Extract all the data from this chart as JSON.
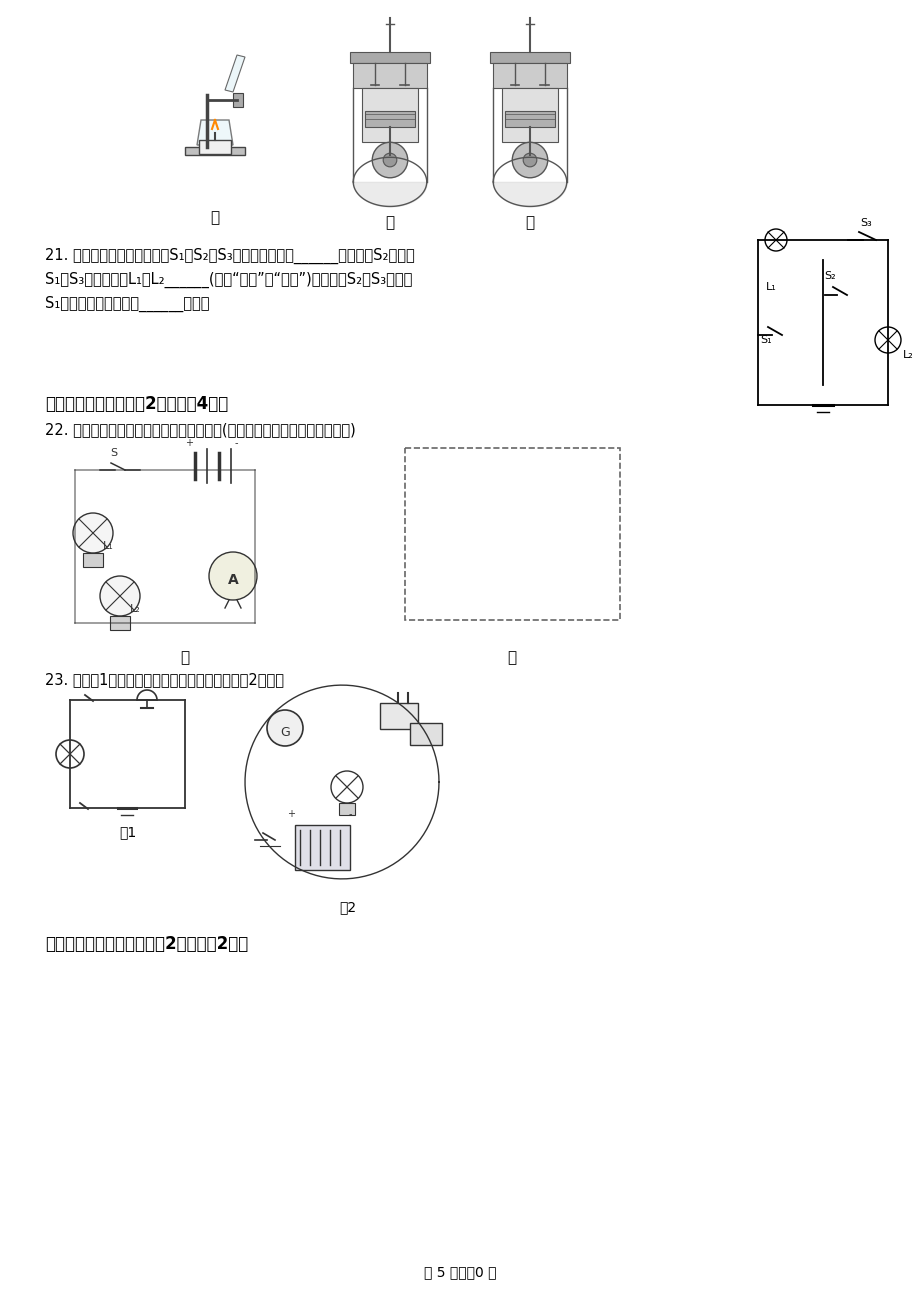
{
  "bg_color": "#ffffff",
  "page_width": 9.2,
  "page_height": 13.02,
  "top_images_label": [
    "甲",
    "乙",
    "丙"
  ],
  "q21_text_line1": "21. 如图所示的电路，当开关S₁、S₂、S₃均闭合时，电路______；当开关S₂闭合，",
  "q21_text_line2": "S₁、S₃均断开时，L₁与L₂______(选填“串联”或“并联”)；当开关S₂、S₃闭合，",
  "q21_text_line3": "S₁断开时，电路中只有______工作。",
  "section3_title": "三、作图题：本大题共2小题，共4分。",
  "q22_text": "22. 根据实物图甲，在框乙中画出电路图。(要求：规范美观与实物一一对应)",
  "q22_jia_label": "甲",
  "q22_yi_label": "乙",
  "q23_text": "23. 根据图1的电路图，用笔画线代替导线连接图2电路。",
  "q23_fig1_label": "图1",
  "q23_fig2_label": "图2",
  "section4_title": "四、实验探究题：本大题共2小题，共2分。",
  "page_footer": "第 5 页，共0 页",
  "text_color": "#000000",
  "gray_color": "#888888"
}
